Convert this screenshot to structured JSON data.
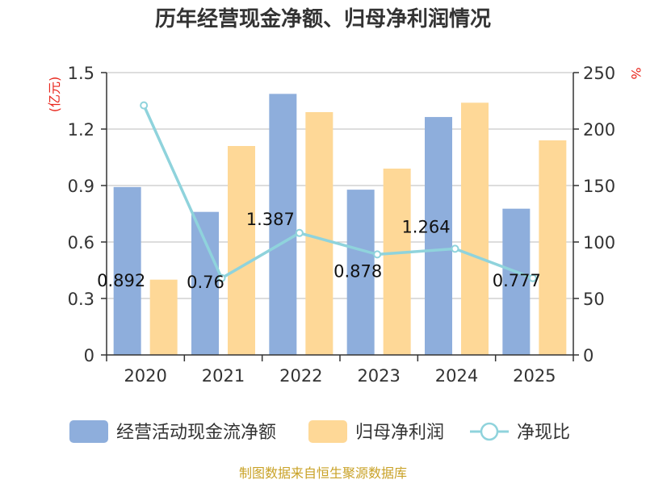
{
  "title": "历年经营现金净额、归母净利润情况",
  "source": "制图数据来自恒生聚源数据库",
  "colors": {
    "bar1": "#8eaedc",
    "bar2": "#fed897",
    "line": "#8fd3dc",
    "grid": "#bbbbbb",
    "axis": "#333333",
    "unit": "#e8261c",
    "source": "#c9a227"
  },
  "chart_data": {
    "type": "bar",
    "categories": [
      "2020",
      "2021",
      "2022",
      "2023",
      "2024",
      "2025"
    ],
    "left_axis": {
      "unit_label": "(亿元)",
      "range": [
        0,
        1.5
      ],
      "ticks": [
        "0",
        "0.3",
        "0.6",
        "0.9",
        "1.2",
        "1.5"
      ]
    },
    "right_axis": {
      "unit_label": "%",
      "range": [
        0,
        250
      ],
      "ticks": [
        "0",
        "50",
        "100",
        "150",
        "200",
        "250"
      ]
    },
    "series": [
      {
        "name": "经营活动现金流净额",
        "type": "bar",
        "axis": "left",
        "values": [
          0.892,
          0.76,
          1.387,
          0.878,
          1.264,
          0.777
        ],
        "labels": [
          "0.892",
          "0.76",
          "1.387",
          "0.878",
          "1.264",
          "0.777"
        ]
      },
      {
        "name": "归母净利润",
        "type": "bar",
        "axis": "left",
        "values": [
          0.4,
          1.11,
          1.29,
          0.99,
          1.34,
          1.14
        ]
      },
      {
        "name": "净现比",
        "type": "line",
        "axis": "right",
        "values": [
          221,
          68,
          108,
          89,
          94,
          68
        ]
      }
    ],
    "grid": true,
    "legend_position": "bottom"
  }
}
